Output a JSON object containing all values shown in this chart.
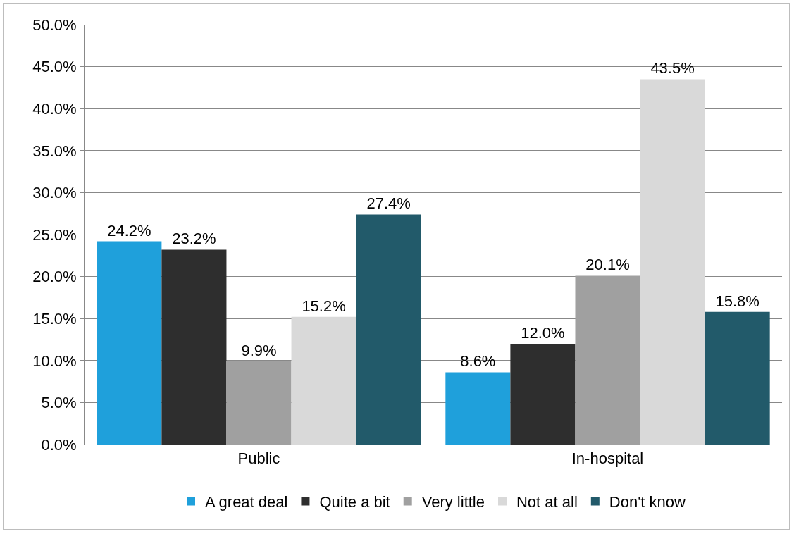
{
  "chart_data": {
    "type": "bar",
    "categories": [
      "Public",
      "In-hospital"
    ],
    "series": [
      {
        "name": "A great deal",
        "color": "#1fa0db",
        "values": [
          24.2,
          8.6
        ],
        "value_labels": [
          "24.2%",
          "8.6%"
        ]
      },
      {
        "name": "Quite a bit",
        "color": "#2e2e2e",
        "values": [
          23.2,
          12.0
        ],
        "value_labels": [
          "23.2%",
          "12.0%"
        ]
      },
      {
        "name": "Very little",
        "color": "#a0a0a0",
        "values": [
          9.9,
          20.1
        ],
        "value_labels": [
          "9.9%",
          "20.1%"
        ]
      },
      {
        "name": "Not at all",
        "color": "#d9d9d9",
        "values": [
          15.2,
          43.5
        ],
        "value_labels": [
          "15.2%",
          "43.5%"
        ]
      },
      {
        "name": "Don't know",
        "color": "#225a6a",
        "values": [
          27.4,
          15.8
        ],
        "value_labels": [
          "27.4%",
          "15.8%"
        ]
      }
    ],
    "ylim": [
      0,
      50
    ],
    "yticks": [
      {
        "value": 0,
        "label": "0.0%"
      },
      {
        "value": 5,
        "label": "5.0%"
      },
      {
        "value": 10,
        "label": "10.0%"
      },
      {
        "value": 15,
        "label": "15.0%"
      },
      {
        "value": 20,
        "label": "20.0%"
      },
      {
        "value": 25,
        "label": "25.0%"
      },
      {
        "value": 30,
        "label": "30.0%"
      },
      {
        "value": 35,
        "label": "35.0%"
      },
      {
        "value": 40,
        "label": "40.0%"
      },
      {
        "value": 45,
        "label": "45.0%"
      },
      {
        "value": 50,
        "label": "50.0%"
      }
    ],
    "grid": "y",
    "legend": "bottom"
  }
}
